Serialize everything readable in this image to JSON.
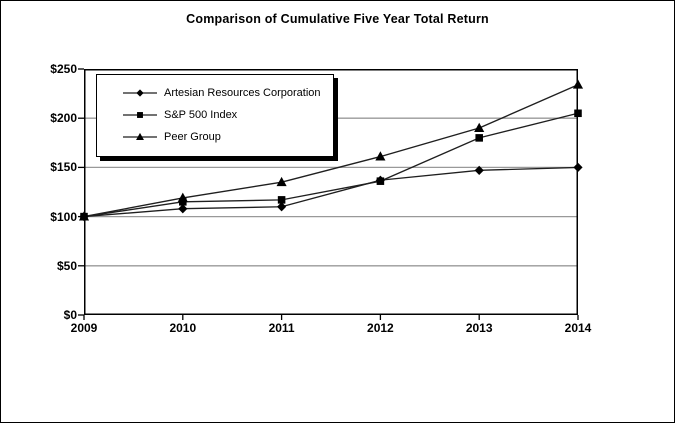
{
  "figure": {
    "title": "Comparison of Cumulative Five Year Total Return"
  },
  "chart_data": {
    "type": "line",
    "title": "Comparison of Cumulative Five Year Total Return",
    "x_labels": [
      "2009",
      "2010",
      "2011",
      "2012",
      "2013",
      "2014"
    ],
    "series": [
      {
        "name": "Artesian Resources Corporation",
        "marker": "diamond",
        "values": [
          100,
          108,
          110,
          137,
          147,
          150
        ]
      },
      {
        "name": "S&P 500 Index",
        "marker": "square",
        "values": [
          100,
          115,
          117,
          136,
          180,
          205
        ]
      },
      {
        "name": "Peer Group",
        "marker": "triangle",
        "values": [
          100,
          119,
          135,
          161,
          190,
          234
        ]
      }
    ],
    "ylim": [
      0,
      250
    ],
    "y_tick_values": [
      0,
      50,
      100,
      150,
      200,
      250
    ],
    "y_tick_labels": [
      "$0",
      "$50",
      "$100",
      "$150",
      "$200",
      "$250"
    ],
    "grid": "horizontal",
    "legend_position": "upper-left-inside",
    "colors": {
      "series_line": "#1f1f1f",
      "marker_fill": "#000000",
      "grid_line": "#999999",
      "frame": "#000000",
      "background": "#ffffff",
      "text": "#000000"
    }
  }
}
